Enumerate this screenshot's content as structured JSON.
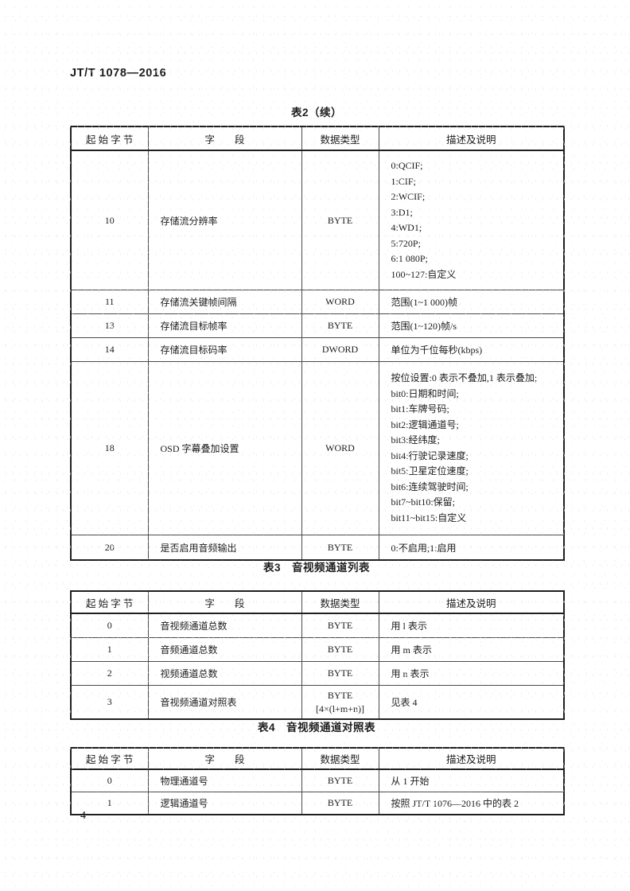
{
  "page": {
    "header": "JT/T 1078—2016",
    "page_number": "4"
  },
  "table2": {
    "title": "表2（续）",
    "columns": [
      "起 始 字 节",
      "字　　段",
      "数据类型",
      "描述及说明"
    ],
    "rows": [
      {
        "byte": "10",
        "field": "存储流分辨率",
        "type": "BYTE",
        "desc": [
          "0:QCIF;",
          "1:CIF;",
          "2:WCIF;",
          "3:D1;",
          "4:WD1;",
          "5:720P;",
          "6:1 080P;",
          "100~127:自定义"
        ]
      },
      {
        "byte": "11",
        "field": "存储流关键帧间隔",
        "type": "WORD",
        "desc": [
          "范围(1~1 000)帧"
        ]
      },
      {
        "byte": "13",
        "field": "存储流目标帧率",
        "type": "BYTE",
        "desc": [
          "范围(1~120)帧/s"
        ]
      },
      {
        "byte": "14",
        "field": "存储流目标码率",
        "type": "DWORD",
        "desc": [
          "单位为千位每秒(kbps)"
        ]
      },
      {
        "byte": "18",
        "field": "OSD 字幕叠加设置",
        "type": "WORD",
        "desc": [
          "按位设置:0 表示不叠加,1 表示叠加;",
          "bit0:日期和时间;",
          "bit1:车牌号码;",
          "bit2:逻辑通道号;",
          "bit3:经纬度;",
          "bit4:行驶记录速度;",
          "bit5:卫星定位速度;",
          "bit6:连续驾驶时间;",
          "bit7~bit10:保留;",
          "bit11~bit15:自定义"
        ]
      },
      {
        "byte": "20",
        "field": "是否启用音频输出",
        "type": "BYTE",
        "desc": [
          "0:不启用;1:启用"
        ]
      }
    ]
  },
  "table3": {
    "title": "表3　音视频通道列表",
    "columns": [
      "起 始 字 节",
      "字　　段",
      "数据类型",
      "描述及说明"
    ],
    "rows": [
      {
        "byte": "0",
        "field": "音视频通道总数",
        "type": [
          "BYTE"
        ],
        "desc": [
          "用 l 表示"
        ]
      },
      {
        "byte": "1",
        "field": "音频通道总数",
        "type": [
          "BYTE"
        ],
        "desc": [
          "用 m 表示"
        ]
      },
      {
        "byte": "2",
        "field": "视频通道总数",
        "type": [
          "BYTE"
        ],
        "desc": [
          "用 n 表示"
        ]
      },
      {
        "byte": "3",
        "field": "音视频通道对照表",
        "type": [
          "BYTE",
          "[4×(l+m+n)]"
        ],
        "desc": [
          "见表 4"
        ]
      }
    ]
  },
  "table4": {
    "title": "表4　音视频通道对照表",
    "columns": [
      "起 始 字 节",
      "字　　段",
      "数据类型",
      "描述及说明"
    ],
    "rows": [
      {
        "byte": "0",
        "field": "物理通道号",
        "type": "BYTE",
        "desc": [
          "从 1 开始"
        ]
      },
      {
        "byte": "1",
        "field": "逻辑通道号",
        "type": "BYTE",
        "desc": [
          "按照 JT/T 1076—2016 中的表 2"
        ]
      }
    ]
  }
}
